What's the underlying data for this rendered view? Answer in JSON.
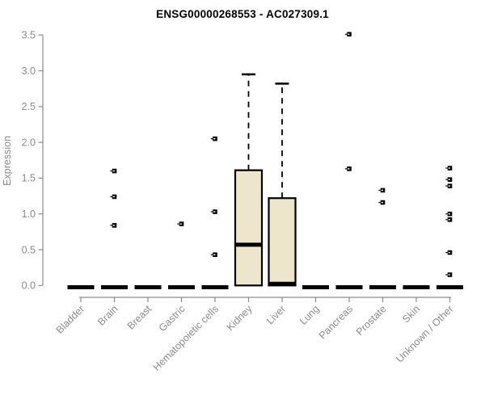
{
  "chart_data": {
    "type": "boxplot",
    "title": "ENSG00000268553 - AC027309.1",
    "ylabel": "Expression",
    "xlabel": "",
    "ylim": [
      0,
      3.5
    ],
    "yticks": [
      0.0,
      0.5,
      1.0,
      1.5,
      2.0,
      2.5,
      3.0,
      3.5
    ],
    "grid": false,
    "legend_position": "none",
    "categories": [
      "Bladder",
      "Brain",
      "Breast",
      "Gastric",
      "Hematopoietic cells",
      "Kidney",
      "Liver",
      "Lung",
      "Pancreas",
      "Prostate",
      "Skin",
      "Unknown / Other"
    ],
    "boxes": [
      {
        "category": "Bladder",
        "median": 0,
        "q1": 0,
        "q3": 0,
        "whisker_low": 0,
        "whisker_high": 0,
        "outliers": []
      },
      {
        "category": "Brain",
        "median": 0,
        "q1": 0,
        "q3": 0,
        "whisker_low": 0,
        "whisker_high": 0,
        "outliers": [
          1.6,
          1.24,
          0.84
        ]
      },
      {
        "category": "Breast",
        "median": 0,
        "q1": 0,
        "q3": 0,
        "whisker_low": 0,
        "whisker_high": 0,
        "outliers": []
      },
      {
        "category": "Gastric",
        "median": 0,
        "q1": 0,
        "q3": 0,
        "whisker_low": 0,
        "whisker_high": 0,
        "outliers": [
          0.86
        ]
      },
      {
        "category": "Hematopoietic cells",
        "median": 0,
        "q1": 0,
        "q3": 0,
        "whisker_low": 0,
        "whisker_high": 0,
        "outliers": [
          2.05,
          1.03,
          0.43
        ]
      },
      {
        "category": "Kidney",
        "median": 0.57,
        "q1": 0,
        "q3": 1.61,
        "whisker_low": 0,
        "whisker_high": 2.95,
        "outliers": []
      },
      {
        "category": "Liver",
        "median": 0.02,
        "q1": 0,
        "q3": 1.22,
        "whisker_low": 0,
        "whisker_high": 2.82,
        "outliers": []
      },
      {
        "category": "Lung",
        "median": 0,
        "q1": 0,
        "q3": 0,
        "whisker_low": 0,
        "whisker_high": 0,
        "outliers": []
      },
      {
        "category": "Pancreas",
        "median": 0,
        "q1": 0,
        "q3": 0,
        "whisker_low": 0,
        "whisker_high": 0,
        "outliers": [
          3.51,
          1.63
        ]
      },
      {
        "category": "Prostate",
        "median": 0,
        "q1": 0,
        "q3": 0,
        "whisker_low": 0,
        "whisker_high": 0,
        "outliers": [
          1.33,
          1.16
        ]
      },
      {
        "category": "Skin",
        "median": 0,
        "q1": 0,
        "q3": 0,
        "whisker_low": 0,
        "whisker_high": 0,
        "outliers": []
      },
      {
        "category": "Unknown / Other",
        "median": 0,
        "q1": 0,
        "q3": 0,
        "whisker_low": 0,
        "whisker_high": 0,
        "outliers": [
          1.64,
          1.48,
          1.39,
          1.0,
          0.92,
          0.46,
          0.15
        ]
      }
    ],
    "colors": {
      "box_fill": "#ede6cc",
      "box_stroke": "#000000",
      "median": "#000000",
      "outlier": "#000000",
      "axis": "#8a8a8a",
      "title": "#000000"
    }
  }
}
